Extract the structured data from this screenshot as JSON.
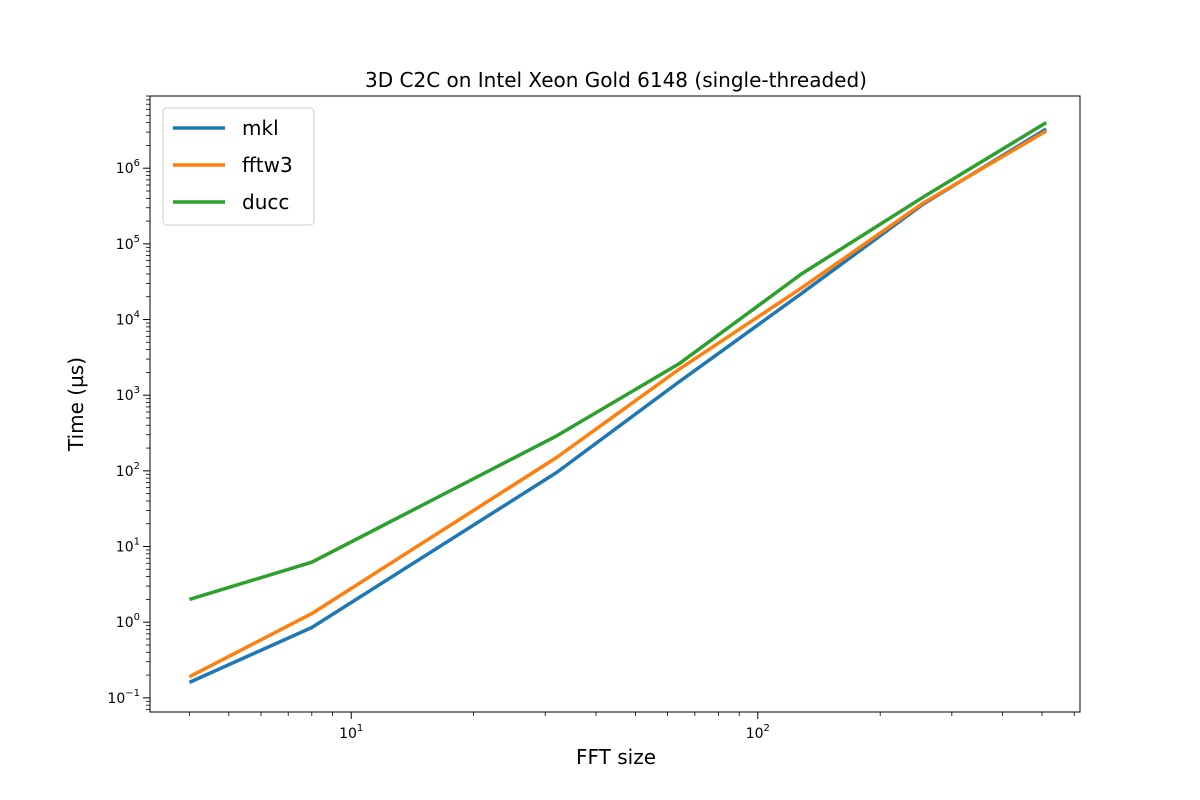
{
  "chart_data": {
    "type": "line",
    "title": "3D C2C on Intel Xeon Gold 6148 (single-threaded)",
    "xlabel": "FFT size",
    "ylabel": "Time (µs)",
    "xscale": "log",
    "yscale": "log",
    "xlim": [
      3.2,
      620
    ],
    "ylim": [
      0.065,
      9000000
    ],
    "xticks": [
      {
        "value": 10,
        "base": "10",
        "exp": "1"
      },
      {
        "value": 100,
        "base": "10",
        "exp": "2"
      }
    ],
    "yticks": [
      {
        "value": 0.1,
        "base": "10",
        "exp": "−1"
      },
      {
        "value": 1,
        "base": "10",
        "exp": "0"
      },
      {
        "value": 10,
        "base": "10",
        "exp": "1"
      },
      {
        "value": 100,
        "base": "10",
        "exp": "2"
      },
      {
        "value": 1000,
        "base": "10",
        "exp": "3"
      },
      {
        "value": 10000,
        "base": "10",
        "exp": "4"
      },
      {
        "value": 100000,
        "base": "10",
        "exp": "5"
      },
      {
        "value": 1000000,
        "base": "10",
        "exp": "6"
      }
    ],
    "grid": false,
    "legend_position": "top-left",
    "x": [
      4,
      8,
      32,
      64,
      128,
      256,
      512
    ],
    "series": [
      {
        "name": "mkl",
        "color": "#1f77b4",
        "values": [
          0.16,
          0.85,
          95,
          1500,
          22000,
          340000,
          3300000
        ]
      },
      {
        "name": "fftw3",
        "color": "#ff7f0e",
        "values": [
          0.19,
          1.3,
          150,
          2200,
          26000,
          350000,
          3100000
        ]
      },
      {
        "name": "ducc",
        "color": "#2ca02c",
        "values": [
          2.0,
          6.2,
          290,
          2600,
          40000,
          420000,
          4000000
        ]
      }
    ]
  }
}
